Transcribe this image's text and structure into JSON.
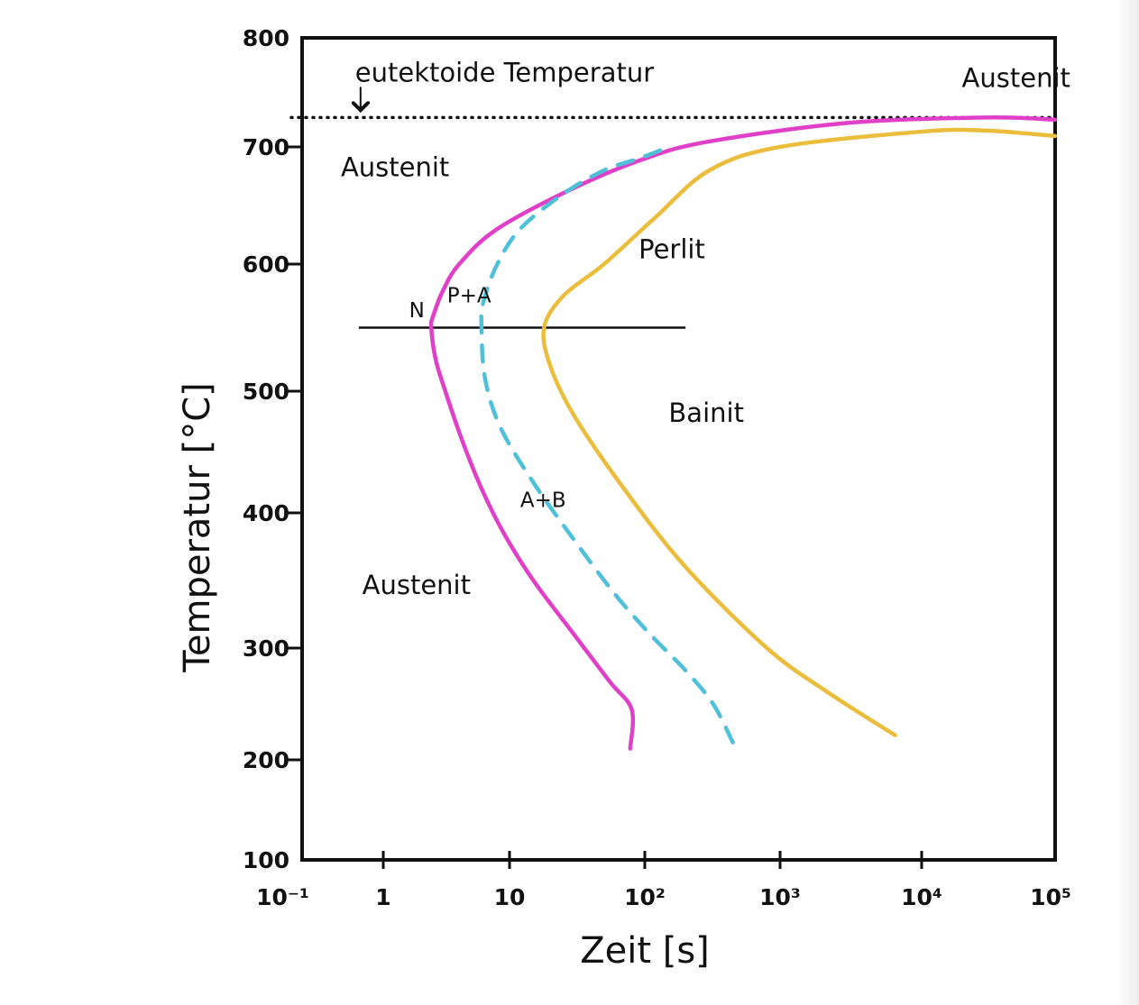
{
  "chart_data": {
    "type": "line",
    "title": "",
    "xlabel": "Zeit [s]",
    "ylabel": "Temperatur [°C]",
    "x_scale": "log",
    "xlim": [
      0.1,
      100000
    ],
    "ylim": [
      100,
      800
    ],
    "x_tick_labels": [
      "10⁻¹",
      "1",
      "10",
      "10²",
      "10³",
      "10⁴",
      "10⁵"
    ],
    "x_tick_values": [
      0.1,
      1,
      10,
      100,
      1000,
      10000,
      100000
    ],
    "y_tick_values": [
      100,
      200,
      300,
      400,
      500,
      600,
      700,
      800
    ],
    "grid": false,
    "eutectoid_temperature": 727,
    "horizontal_line": {
      "y": 550,
      "x_from": 0.5,
      "x_to": 200
    },
    "series": [
      {
        "color": "#e040c8",
        "style": "solid",
        "points": [
          [
            100000,
            725
          ],
          [
            30000,
            727
          ],
          [
            3000,
            722
          ],
          [
            300,
            705
          ],
          [
            100,
            690
          ],
          [
            30,
            665
          ],
          [
            8,
            630
          ],
          [
            4,
            600
          ],
          [
            3,
            580
          ],
          [
            2.5,
            560
          ],
          [
            2.4,
            550
          ],
          [
            2.6,
            525
          ],
          [
            3.1,
            500
          ],
          [
            4.2,
            460
          ],
          [
            6,
            420
          ],
          [
            9,
            385
          ],
          [
            15,
            350
          ],
          [
            30,
            310
          ],
          [
            55,
            270
          ],
          [
            80,
            245
          ],
          [
            78,
            210
          ]
        ]
      },
      {
        "color": "#4fc0d8",
        "style": "dashed",
        "points": [
          [
            130,
            697
          ],
          [
            90,
            690
          ],
          [
            50,
            680
          ],
          [
            25,
            660
          ],
          [
            12,
            630
          ],
          [
            8,
            600
          ],
          [
            6.2,
            570
          ],
          [
            6,
            550
          ],
          [
            6.4,
            510
          ],
          [
            8.5,
            470
          ],
          [
            15,
            425
          ],
          [
            30,
            380
          ],
          [
            60,
            340
          ],
          [
            110,
            310
          ],
          [
            200,
            280
          ],
          [
            320,
            250
          ],
          [
            450,
            215
          ]
        ]
      },
      {
        "color": "#ebbd3c",
        "style": "solid",
        "points": [
          [
            100000,
            710
          ],
          [
            30000,
            715
          ],
          [
            10000,
            714
          ],
          [
            1000,
            700
          ],
          [
            300,
            680
          ],
          [
            120,
            640
          ],
          [
            50,
            600
          ],
          [
            25,
            575
          ],
          [
            18,
            550
          ],
          [
            20,
            520
          ],
          [
            30,
            480
          ],
          [
            70,
            420
          ],
          [
            200,
            360
          ],
          [
            800,
            300
          ],
          [
            2200,
            260
          ],
          [
            6500,
            222
          ]
        ]
      }
    ],
    "annotations": [
      {
        "text": "eutektoide Temperatur",
        "x": 0.45,
        "y": 760
      },
      {
        "text": "Austenit",
        "x": 20000,
        "y": 755
      },
      {
        "text": "Austenit",
        "x": 0.3,
        "y": 675
      },
      {
        "text": "Perlit",
        "x": 90,
        "y": 605
      },
      {
        "text": "P+A",
        "x": 3.2,
        "y": 570
      },
      {
        "text": "N",
        "x": 1.6,
        "y": 558
      },
      {
        "text": "Bainit",
        "x": 150,
        "y": 475
      },
      {
        "text": "A+B",
        "x": 12,
        "y": 405
      },
      {
        "text": "Austenit",
        "x": 0.55,
        "y": 340
      }
    ]
  }
}
